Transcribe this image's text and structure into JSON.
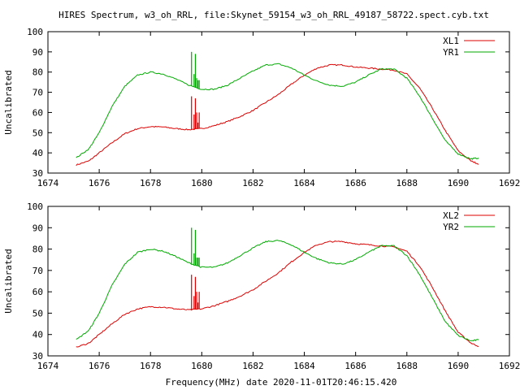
{
  "title": "HIRES Spectrum, w3_oh_RRL, file:Skynet_59154_w3_oh_RRL_49187_58722.spect.cyb.txt",
  "colors": {
    "red": "#dd0000",
    "green": "#00aa00",
    "axes": "#000000"
  },
  "chart_data": [
    {
      "type": "line",
      "title": "HIRES Spectrum, w3_oh_RRL, file:Skynet_59154_w3_oh_RRL_49187_58722.spect.cyb.txt",
      "xlabel": "",
      "ylabel": "Uncalibrated",
      "xlim": [
        1674,
        1692
      ],
      "ylim": [
        30,
        100
      ],
      "xticks": [
        "1674",
        "1676",
        "1678",
        "1680",
        "1682",
        "1684",
        "1686",
        "1688",
        "1690",
        "1692"
      ],
      "yticks": [
        "30",
        "40",
        "50",
        "60",
        "70",
        "80",
        "90",
        "100"
      ],
      "legend_position": "top-right",
      "grid": false,
      "series": [
        {
          "name": "XL1",
          "color": "#dd0000",
          "x": [
            1675.1,
            1675.6,
            1676.0,
            1676.5,
            1677.0,
            1677.5,
            1678.0,
            1678.5,
            1679.0,
            1679.5,
            1680.0,
            1680.5,
            1681.0,
            1681.5,
            1682.0,
            1682.5,
            1683.0,
            1683.5,
            1684.0,
            1684.5,
            1685.0,
            1685.5,
            1686.0,
            1686.5,
            1687.0,
            1687.5,
            1688.0,
            1688.5,
            1689.0,
            1689.5,
            1690.0,
            1690.5,
            1690.8
          ],
          "y": [
            34,
            36,
            40,
            45,
            49.5,
            52,
            53,
            52.8,
            52,
            51.5,
            52,
            53.5,
            55.5,
            58,
            61,
            65,
            69,
            74,
            78.5,
            82,
            83.5,
            83.5,
            82.5,
            82,
            81.5,
            81,
            79,
            72,
            62,
            51,
            41,
            36,
            34.5
          ]
        },
        {
          "name": "YR1",
          "color": "#00aa00",
          "x": [
            1675.1,
            1675.6,
            1676.0,
            1676.5,
            1677.0,
            1677.5,
            1678.0,
            1678.5,
            1679.0,
            1679.5,
            1680.0,
            1680.5,
            1681.0,
            1681.5,
            1682.0,
            1682.5,
            1683.0,
            1683.5,
            1684.0,
            1684.5,
            1685.0,
            1685.5,
            1686.0,
            1686.5,
            1687.0,
            1687.5,
            1688.0,
            1688.5,
            1689.0,
            1689.5,
            1690.0,
            1690.5,
            1690.8
          ],
          "y": [
            37.5,
            42,
            50,
            63,
            73,
            78.5,
            80,
            79,
            76.5,
            73.5,
            71.5,
            71.5,
            73.5,
            77,
            80.5,
            83.5,
            84,
            82,
            78.5,
            75.5,
            73.5,
            73,
            75,
            78.5,
            81.5,
            81.5,
            77,
            68,
            57,
            46,
            39.5,
            37,
            37.5
          ]
        }
      ],
      "spikes": [
        {
          "series": "XL1",
          "x": [
            1679.6,
            1679.7,
            1679.75,
            1679.8,
            1679.85,
            1679.9
          ],
          "y": [
            68,
            59,
            67,
            60,
            55,
            60
          ]
        },
        {
          "series": "YR1",
          "x": [
            1679.6,
            1679.7,
            1679.75,
            1679.8,
            1679.85,
            1679.9
          ],
          "y": [
            90,
            79,
            89,
            77,
            76,
            76
          ]
        }
      ]
    },
    {
      "type": "line",
      "title": "",
      "xlabel": "Frequency(MHz) date 2020-11-01T20:46:15.420",
      "ylabel": "Uncalibrated",
      "xlim": [
        1674,
        1692
      ],
      "ylim": [
        30,
        100
      ],
      "xticks": [
        "1674",
        "1676",
        "1678",
        "1680",
        "1682",
        "1684",
        "1686",
        "1688",
        "1690",
        "1692"
      ],
      "yticks": [
        "30",
        "40",
        "50",
        "60",
        "70",
        "80",
        "90",
        "100"
      ],
      "legend_position": "top-right",
      "grid": false,
      "series": [
        {
          "name": "XL2",
          "color": "#dd0000",
          "x": [
            1675.1,
            1675.6,
            1676.0,
            1676.5,
            1677.0,
            1677.5,
            1678.0,
            1678.5,
            1679.0,
            1679.5,
            1680.0,
            1680.5,
            1681.0,
            1681.5,
            1682.0,
            1682.5,
            1683.0,
            1683.5,
            1684.0,
            1684.5,
            1685.0,
            1685.5,
            1686.0,
            1686.5,
            1687.0,
            1687.5,
            1688.0,
            1688.5,
            1689.0,
            1689.5,
            1690.0,
            1690.5,
            1690.8
          ],
          "y": [
            34,
            36,
            40,
            45,
            49.5,
            52,
            53,
            52.8,
            52,
            51.5,
            52,
            53.5,
            55.5,
            58,
            61,
            65,
            69,
            74,
            78.5,
            82,
            83.5,
            83.5,
            82.5,
            82,
            81.5,
            81,
            79,
            72,
            62,
            51,
            41,
            36,
            34.5
          ]
        },
        {
          "name": "YR2",
          "color": "#00aa00",
          "x": [
            1675.1,
            1675.6,
            1676.0,
            1676.5,
            1677.0,
            1677.5,
            1678.0,
            1678.5,
            1679.0,
            1679.5,
            1680.0,
            1680.5,
            1681.0,
            1681.5,
            1682.0,
            1682.5,
            1683.0,
            1683.5,
            1684.0,
            1684.5,
            1685.0,
            1685.5,
            1686.0,
            1686.5,
            1687.0,
            1687.5,
            1688.0,
            1688.5,
            1689.0,
            1689.5,
            1690.0,
            1690.5,
            1690.8
          ],
          "y": [
            37.5,
            42,
            50,
            63,
            73,
            78.5,
            80,
            79,
            76.5,
            73.5,
            71.5,
            71.5,
            73.5,
            77,
            80.5,
            83.5,
            84,
            82,
            78.5,
            75.5,
            73.5,
            73,
            75,
            78.5,
            81.5,
            81.5,
            77,
            68,
            57,
            46,
            39.5,
            37,
            37.5
          ]
        }
      ],
      "spikes": [
        {
          "series": "XL2",
          "x": [
            1679.6,
            1679.7,
            1679.75,
            1679.8,
            1679.85,
            1679.9
          ],
          "y": [
            68,
            58,
            67,
            60,
            55,
            60
          ]
        },
        {
          "series": "YR2",
          "x": [
            1679.6,
            1679.7,
            1679.75,
            1679.8,
            1679.85,
            1679.9
          ],
          "y": [
            90,
            78,
            89,
            76,
            76,
            76
          ]
        }
      ]
    }
  ]
}
